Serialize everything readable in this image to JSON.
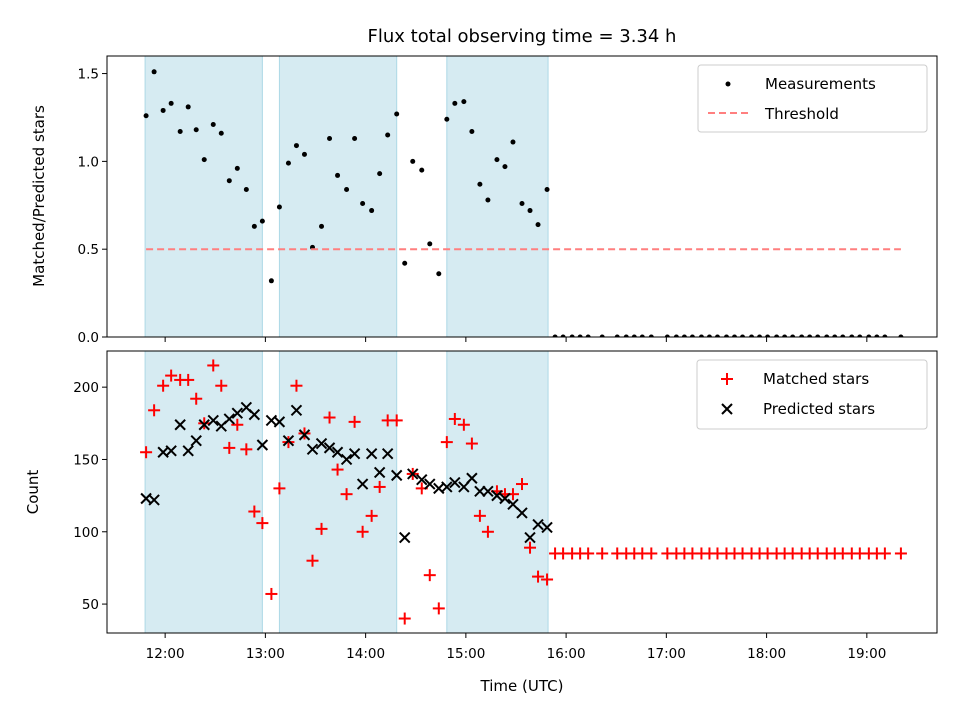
{
  "chart_data": {
    "type": "scatter",
    "title": "Flux total observing time = 3.34 h",
    "xlabel": "Time (UTC)",
    "x_unit": "hours",
    "xlim": [
      11.42,
      19.7
    ],
    "xticks": [
      {
        "v": 12,
        "label": "12:00"
      },
      {
        "v": 13,
        "label": "13:00"
      },
      {
        "v": 14,
        "label": "14:00"
      },
      {
        "v": 15,
        "label": "15:00"
      },
      {
        "v": 16,
        "label": "16:00"
      },
      {
        "v": 17,
        "label": "17:00"
      },
      {
        "v": 18,
        "label": "18:00"
      },
      {
        "v": 19,
        "label": "19:00"
      }
    ],
    "observing_windows": [
      [
        11.8,
        12.97
      ],
      [
        13.14,
        14.31
      ],
      [
        14.81,
        15.82
      ]
    ],
    "window_color": "#add8e6",
    "top": {
      "ylabel": "Matched/Predicted stars",
      "ylim": [
        0,
        1.6
      ],
      "yticks": [
        {
          "v": 0,
          "label": "0.0"
        },
        {
          "v": 0.5,
          "label": "0.5"
        },
        {
          "v": 1.0,
          "label": "1.0"
        },
        {
          "v": 1.5,
          "label": "1.5"
        }
      ],
      "series": [
        {
          "name": "Measurements",
          "marker": "dot",
          "color": "#000000",
          "x": [
            11.81,
            11.89,
            11.98,
            12.06,
            12.15,
            12.23,
            12.31,
            12.39,
            12.48,
            12.56,
            12.64,
            12.72,
            12.81,
            12.89,
            12.97,
            13.06,
            13.14,
            13.23,
            13.31,
            13.39,
            13.47,
            13.56,
            13.64,
            13.72,
            13.81,
            13.89,
            13.97,
            14.06,
            14.14,
            14.22,
            14.31,
            14.39,
            14.47,
            14.56,
            14.64,
            14.73,
            14.81,
            14.89,
            14.98,
            15.06,
            15.14,
            15.22,
            15.31,
            15.39,
            15.47,
            15.56,
            15.64,
            15.72,
            15.81,
            15.89,
            15.97,
            16.06,
            16.14,
            16.22,
            16.36,
            16.51,
            16.6,
            16.68,
            16.76,
            16.85,
            17.01,
            17.1,
            17.18,
            17.26,
            17.35,
            17.43,
            17.51,
            17.6,
            17.68,
            17.76,
            17.85,
            17.93,
            18.01,
            18.1,
            18.18,
            18.26,
            18.35,
            18.43,
            18.51,
            18.6,
            18.68,
            18.76,
            18.85,
            18.93,
            19.02,
            19.1,
            19.18,
            19.34
          ],
          "y": [
            1.26,
            1.51,
            1.29,
            1.33,
            1.17,
            1.31,
            1.18,
            1.01,
            1.21,
            1.16,
            0.89,
            0.96,
            0.84,
            0.63,
            0.66,
            0.32,
            0.74,
            0.99,
            1.09,
            1.04,
            0.51,
            0.63,
            1.13,
            0.92,
            0.84,
            1.13,
            0.76,
            0.72,
            0.93,
            1.15,
            1.27,
            0.42,
            1.0,
            0.95,
            0.53,
            0.36,
            1.24,
            1.33,
            1.34,
            1.17,
            0.87,
            0.78,
            1.01,
            0.97,
            1.11,
            0.76,
            0.72,
            0.64,
            0.84,
            0,
            0,
            0,
            0,
            0,
            0,
            0,
            0,
            0,
            0,
            0,
            0,
            0,
            0,
            0,
            0,
            0,
            0,
            0,
            0,
            0,
            0,
            0,
            0,
            0,
            0,
            0,
            0,
            0,
            0,
            0,
            0,
            0,
            0,
            0,
            0,
            0,
            0,
            0
          ]
        },
        {
          "name": "Threshold",
          "marker": "dashed-line",
          "color": "#ff7f7f",
          "x": [
            11.81,
            19.34
          ],
          "y": [
            0.5,
            0.5
          ]
        }
      ],
      "legend_position": "upper right"
    },
    "bottom": {
      "ylabel": "Count",
      "ylim": [
        30,
        225
      ],
      "yticks": [
        {
          "v": 50,
          "label": "50"
        },
        {
          "v": 100,
          "label": "100"
        },
        {
          "v": 150,
          "label": "150"
        },
        {
          "v": 200,
          "label": "200"
        }
      ],
      "series": [
        {
          "name": "Matched stars",
          "marker": "plus",
          "color": "#ff0000",
          "x": [
            11.81,
            11.89,
            11.98,
            12.06,
            12.15,
            12.23,
            12.31,
            12.39,
            12.48,
            12.56,
            12.64,
            12.72,
            12.81,
            12.89,
            12.97,
            13.06,
            13.14,
            13.23,
            13.31,
            13.39,
            13.47,
            13.56,
            13.64,
            13.72,
            13.81,
            13.89,
            13.97,
            14.06,
            14.14,
            14.22,
            14.31,
            14.39,
            14.47,
            14.56,
            14.64,
            14.73,
            14.81,
            14.89,
            14.98,
            15.06,
            15.14,
            15.22,
            15.31,
            15.39,
            15.47,
            15.56,
            15.64,
            15.72,
            15.81,
            15.89,
            15.97,
            16.06,
            16.14,
            16.22,
            16.36,
            16.51,
            16.6,
            16.68,
            16.76,
            16.85,
            17.01,
            17.1,
            17.18,
            17.26,
            17.35,
            17.43,
            17.51,
            17.6,
            17.68,
            17.76,
            17.85,
            17.93,
            18.01,
            18.1,
            18.18,
            18.26,
            18.35,
            18.43,
            18.51,
            18.6,
            18.68,
            18.76,
            18.85,
            18.93,
            19.02,
            19.1,
            19.18,
            19.34
          ],
          "y": [
            155,
            184,
            201,
            208,
            205,
            205,
            192,
            175,
            215,
            201,
            158,
            174,
            157,
            114,
            106,
            57,
            130,
            162,
            201,
            168,
            80,
            102,
            179,
            143,
            126,
            176,
            100,
            111,
            131,
            177,
            177,
            40,
            140,
            130,
            70,
            47,
            162,
            178,
            174,
            161,
            111,
            100,
            128,
            126,
            126,
            133,
            89,
            69,
            67,
            85,
            85,
            85,
            85,
            85,
            85,
            85,
            85,
            85,
            85,
            85,
            85,
            85,
            85,
            85,
            85,
            85,
            85,
            85,
            85,
            85,
            85,
            85,
            85,
            85,
            85,
            85,
            85,
            85,
            85,
            85,
            85,
            85,
            85,
            85,
            85,
            85,
            85,
            85
          ]
        },
        {
          "name": "Predicted stars",
          "marker": "x",
          "color": "#000000",
          "x": [
            11.81,
            11.89,
            11.98,
            12.06,
            12.15,
            12.23,
            12.31,
            12.39,
            12.48,
            12.56,
            12.64,
            12.72,
            12.81,
            12.89,
            12.97,
            13.06,
            13.14,
            13.23,
            13.31,
            13.39,
            13.47,
            13.56,
            13.64,
            13.72,
            13.81,
            13.89,
            13.97,
            14.06,
            14.14,
            14.22,
            14.31,
            14.39,
            14.47,
            14.56,
            14.64,
            14.73,
            14.81,
            14.89,
            14.98,
            15.06,
            15.14,
            15.22,
            15.31,
            15.39,
            15.47,
            15.56,
            15.64,
            15.72,
            15.81
          ],
          "y": [
            123,
            122,
            155,
            156,
            174,
            156,
            163,
            174,
            177,
            173,
            178,
            182,
            186,
            181,
            160,
            177,
            176,
            163,
            184,
            167,
            157,
            161,
            158,
            155,
            150,
            154,
            133,
            154,
            141,
            154,
            139,
            96,
            140,
            136,
            133,
            130,
            131,
            134,
            131,
            137,
            128,
            128,
            125,
            123,
            119,
            113,
            96,
            105,
            103
          ]
        }
      ],
      "legend_position": "upper right"
    }
  }
}
